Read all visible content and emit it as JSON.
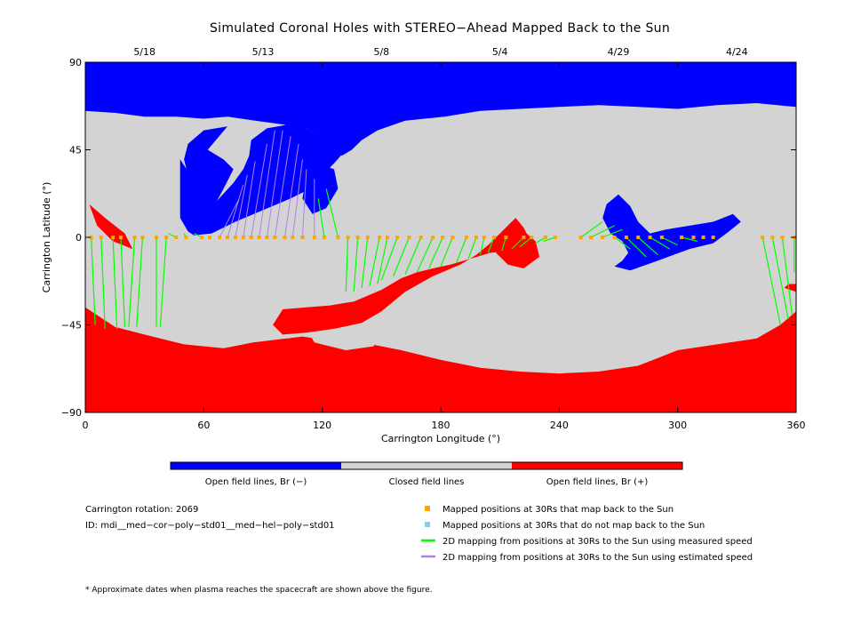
{
  "chart_data": {
    "type": "map",
    "title": "Simulated Coronal Holes with STEREO−Ahead Mapped Back to the Sun",
    "xlabel": "Carrington Longitude (°)",
    "ylabel": "Carrington Latitude (°)",
    "xlim": [
      0,
      360
    ],
    "ylim": [
      -90,
      90
    ],
    "x_ticks": [
      "0",
      "60",
      "120",
      "180",
      "240",
      "300",
      "360"
    ],
    "y_ticks": [
      "90",
      "45",
      "0",
      "−45",
      "−90"
    ],
    "top_dates": [
      {
        "label": "5/18",
        "lon": 30
      },
      {
        "label": "5/13",
        "lon": 90
      },
      {
        "label": "5/8",
        "lon": 150
      },
      {
        "label": "5/4",
        "lon": 210
      },
      {
        "label": "4/29",
        "lon": 270
      },
      {
        "label": "4/24",
        "lon": 330
      }
    ],
    "colors": {
      "open_negative": "#0000ff",
      "closed": "#d3d3d3",
      "open_positive": "#ff0000",
      "mapped_back": "#ffa500",
      "not_mapped": "#87ceeb",
      "measured_speed": "#00ff00",
      "estimated_speed": "#b17fe9"
    },
    "regions": {
      "negative_polar_cap": [
        [
          0,
          90
        ],
        [
          360,
          90
        ],
        [
          360,
          67
        ],
        [
          340,
          69
        ],
        [
          320,
          68
        ],
        [
          300,
          66
        ],
        [
          280,
          67
        ],
        [
          260,
          68
        ],
        [
          240,
          67
        ],
        [
          220,
          66
        ],
        [
          200,
          65
        ],
        [
          182,
          62
        ],
        [
          162,
          60
        ],
        [
          148,
          55
        ],
        [
          140,
          50
        ],
        [
          135,
          45
        ],
        [
          130,
          42
        ],
        [
          120,
          51
        ],
        [
          112,
          56
        ],
        [
          100,
          58
        ],
        [
          86,
          60
        ],
        [
          72,
          62
        ],
        [
          60,
          61
        ],
        [
          46,
          62
        ],
        [
          30,
          62
        ],
        [
          15,
          64
        ],
        [
          0,
          65
        ]
      ],
      "negative_descending_lobe": [
        [
          132,
          45
        ],
        [
          122,
          50
        ],
        [
          112,
          56
        ],
        [
          103,
          58
        ],
        [
          92,
          56
        ],
        [
          84,
          50
        ],
        [
          83,
          42
        ],
        [
          80,
          35
        ],
        [
          75,
          28
        ],
        [
          66,
          18
        ],
        [
          56,
          8
        ],
        [
          52,
          3
        ],
        [
          55,
          1
        ],
        [
          64,
          2
        ],
        [
          76,
          8
        ],
        [
          90,
          14
        ],
        [
          104,
          20
        ],
        [
          114,
          25
        ],
        [
          120,
          32
        ],
        [
          126,
          38
        ]
      ],
      "negative_left_cap": [
        [
          72,
          55
        ],
        [
          63,
          55
        ],
        [
          52,
          48
        ],
        [
          52,
          40
        ],
        [
          56,
          35
        ],
        [
          62,
          30
        ],
        [
          53,
          20
        ],
        [
          47,
          40
        ],
        [
          52,
          48
        ]
      ],
      "negative_hook": [
        [
          72,
          57
        ],
        [
          60,
          55
        ],
        [
          52,
          48
        ],
        [
          50,
          40
        ],
        [
          52,
          32
        ],
        [
          56,
          28
        ],
        [
          48,
          40
        ],
        [
          48,
          10
        ],
        [
          52,
          3
        ],
        [
          62,
          10
        ],
        [
          70,
          25
        ],
        [
          75,
          35
        ],
        [
          70,
          40
        ],
        [
          62,
          45
        ]
      ],
      "negative_small_right": [
        [
          118,
          38
        ],
        [
          112,
          32
        ],
        [
          110,
          20
        ],
        [
          115,
          12
        ],
        [
          122,
          15
        ],
        [
          128,
          25
        ],
        [
          126,
          35
        ]
      ],
      "negative_mid_right": [
        [
          270,
          22
        ],
        [
          264,
          17
        ],
        [
          262,
          10
        ],
        [
          266,
          2
        ],
        [
          272,
          -2
        ],
        [
          275,
          -8
        ],
        [
          272,
          -12
        ],
        [
          268,
          -15
        ],
        [
          276,
          -17
        ],
        [
          290,
          -12
        ],
        [
          306,
          -6
        ],
        [
          318,
          -3
        ],
        [
          326,
          3
        ],
        [
          332,
          8
        ],
        [
          328,
          12
        ],
        [
          318,
          8
        ],
        [
          306,
          6
        ],
        [
          294,
          4
        ],
        [
          286,
          2
        ],
        [
          280,
          8
        ],
        [
          276,
          16
        ]
      ],
      "positive_polar_cap": [
        [
          0,
          -90
        ],
        [
          360,
          -90
        ],
        [
          360,
          -38
        ],
        [
          352,
          -45
        ],
        [
          340,
          -52
        ],
        [
          320,
          -55
        ],
        [
          300,
          -58
        ],
        [
          280,
          -66
        ],
        [
          260,
          -69
        ],
        [
          240,
          -70
        ],
        [
          220,
          -69
        ],
        [
          200,
          -67
        ],
        [
          180,
          -63
        ],
        [
          160,
          -58
        ],
        [
          145,
          -55
        ],
        [
          130,
          -54
        ],
        [
          110,
          -51
        ],
        [
          85,
          -54
        ],
        [
          70,
          -57
        ],
        [
          50,
          -55
        ],
        [
          30,
          -50
        ],
        [
          15,
          -46
        ],
        [
          0,
          -36
        ]
      ],
      "positive_ridge": [
        [
          95,
          -45
        ],
        [
          100,
          -37
        ],
        [
          112,
          -36
        ],
        [
          124,
          -35
        ],
        [
          136,
          -33
        ],
        [
          150,
          -27
        ],
        [
          160,
          -21
        ],
        [
          168,
          -18
        ],
        [
          176,
          -16
        ],
        [
          185,
          -14
        ],
        [
          195,
          -11
        ],
        [
          205,
          -8
        ],
        [
          214,
          -7
        ],
        [
          220,
          -5
        ],
        [
          226,
          -3
        ],
        [
          222,
          5
        ],
        [
          218,
          10
        ],
        [
          212,
          4
        ],
        [
          204,
          -4
        ],
        [
          198,
          -9
        ],
        [
          190,
          -14
        ],
        [
          176,
          -20
        ],
        [
          162,
          -28
        ],
        [
          150,
          -38
        ],
        [
          140,
          -44
        ],
        [
          126,
          -47
        ],
        [
          112,
          -49
        ],
        [
          100,
          -50
        ]
      ],
      "positive_tip": [
        [
          220,
          5
        ],
        [
          214,
          -1
        ],
        [
          208,
          -8
        ],
        [
          214,
          -14
        ],
        [
          222,
          -16
        ],
        [
          230,
          -10
        ],
        [
          228,
          -2
        ]
      ],
      "positive_left_wedge": [
        [
          2,
          17
        ],
        [
          10,
          10
        ],
        [
          20,
          2
        ],
        [
          24,
          -6
        ],
        [
          14,
          -2
        ],
        [
          6,
          6
        ]
      ],
      "positive_right_spot": [
        [
          356,
          -24
        ],
        [
          354,
          -26
        ],
        [
          360,
          -28
        ],
        [
          360,
          -24
        ]
      ],
      "closed_island_big": [
        [
          116,
          -42
        ],
        [
          112,
          -47
        ],
        [
          116,
          -54
        ],
        [
          132,
          -58
        ],
        [
          146,
          -56
        ],
        [
          150,
          -50
        ],
        [
          146,
          -44
        ],
        [
          134,
          -40
        ],
        [
          124,
          -39
        ]
      ],
      "closed_island_small": [
        [
          96,
          -49
        ],
        [
          98,
          -51
        ],
        [
          103,
          -52
        ],
        [
          106,
          -51
        ],
        [
          104,
          -48
        ],
        [
          99,
          -47
        ]
      ],
      "positive_right_small": [
        [
          355,
          -26
        ],
        [
          360,
          -24
        ]
      ]
    },
    "mapped_points": {
      "lat_on_equator": 0,
      "lon": [
        3,
        8,
        14,
        18,
        25,
        29,
        36,
        41,
        46,
        51,
        59,
        63,
        68,
        72,
        76,
        80,
        84,
        88,
        92,
        96,
        101,
        105,
        110,
        116,
        121,
        128,
        133,
        138,
        143,
        149,
        153,
        158,
        164,
        170,
        176,
        181,
        186,
        193,
        198,
        202,
        207,
        213,
        222,
        226,
        233,
        238,
        251,
        256,
        262,
        268,
        274,
        280,
        286,
        292,
        302,
        308,
        313,
        318,
        343,
        348,
        353,
        359
      ]
    },
    "measured_lines": [
      [
        [
          3,
          0
        ],
        [
          5,
          -45
        ]
      ],
      [
        [
          8,
          0
        ],
        [
          10,
          -47
        ]
      ],
      [
        [
          14,
          0
        ],
        [
          16,
          -47
        ]
      ],
      [
        [
          18,
          0
        ],
        [
          20,
          -46
        ]
      ],
      [
        [
          25,
          0
        ],
        [
          22,
          -46
        ]
      ],
      [
        [
          29,
          0
        ],
        [
          26,
          -46
        ]
      ],
      [
        [
          36,
          0
        ],
        [
          36,
          -46
        ]
      ],
      [
        [
          41,
          0
        ],
        [
          38,
          -46
        ]
      ],
      [
        [
          46,
          0
        ],
        [
          42,
          2
        ]
      ],
      [
        [
          51,
          0
        ],
        [
          50,
          2
        ]
      ],
      [
        [
          59,
          0
        ],
        [
          55,
          2
        ]
      ],
      [
        [
          121,
          0
        ],
        [
          118,
          20
        ]
      ],
      [
        [
          128,
          0
        ],
        [
          122,
          25
        ]
      ],
      [
        [
          133,
          0
        ],
        [
          132,
          -28
        ]
      ],
      [
        [
          138,
          0
        ],
        [
          136,
          -28
        ]
      ],
      [
        [
          143,
          0
        ],
        [
          140,
          -26
        ]
      ],
      [
        [
          149,
          0
        ],
        [
          144,
          -25
        ]
      ],
      [
        [
          153,
          0
        ],
        [
          148,
          -24
        ]
      ],
      [
        [
          158,
          0
        ],
        [
          150,
          -22
        ]
      ],
      [
        [
          164,
          0
        ],
        [
          156,
          -20
        ]
      ],
      [
        [
          170,
          0
        ],
        [
          162,
          -19
        ]
      ],
      [
        [
          176,
          0
        ],
        [
          168,
          -18
        ]
      ],
      [
        [
          181,
          0
        ],
        [
          174,
          -16
        ]
      ],
      [
        [
          186,
          0
        ],
        [
          180,
          -15
        ]
      ],
      [
        [
          193,
          0
        ],
        [
          188,
          -13
        ]
      ],
      [
        [
          198,
          0
        ],
        [
          194,
          -11
        ]
      ],
      [
        [
          202,
          0
        ],
        [
          200,
          -9
        ]
      ],
      [
        [
          207,
          0
        ],
        [
          204,
          -8
        ]
      ],
      [
        [
          213,
          0
        ],
        [
          211,
          -7
        ]
      ],
      [
        [
          222,
          0
        ],
        [
          216,
          -6
        ]
      ],
      [
        [
          226,
          0
        ],
        [
          220,
          -5
        ]
      ],
      [
        [
          233,
          0
        ],
        [
          228,
          -3
        ]
      ],
      [
        [
          238,
          0
        ],
        [
          232,
          -2
        ]
      ],
      [
        [
          251,
          0
        ],
        [
          262,
          8
        ]
      ],
      [
        [
          256,
          0
        ],
        [
          268,
          6
        ]
      ],
      [
        [
          262,
          0
        ],
        [
          272,
          4
        ]
      ],
      [
        [
          268,
          0
        ],
        [
          276,
          -6
        ]
      ],
      [
        [
          274,
          0
        ],
        [
          284,
          -10
        ]
      ],
      [
        [
          280,
          0
        ],
        [
          290,
          -9
        ]
      ],
      [
        [
          286,
          0
        ],
        [
          296,
          -6
        ]
      ],
      [
        [
          292,
          0
        ],
        [
          300,
          -4
        ]
      ],
      [
        [
          302,
          0
        ],
        [
          310,
          -2
        ]
      ],
      [
        [
          343,
          0
        ],
        [
          352,
          -45
        ]
      ],
      [
        [
          348,
          0
        ],
        [
          356,
          -42
        ]
      ],
      [
        [
          353,
          0
        ],
        [
          358,
          -40
        ]
      ],
      [
        [
          359,
          0
        ],
        [
          359,
          -18
        ]
      ]
    ],
    "estimated_lines": [
      [
        [
          68,
          0
        ],
        [
          78,
          20
        ]
      ],
      [
        [
          72,
          0
        ],
        [
          80,
          27
        ]
      ],
      [
        [
          76,
          0
        ],
        [
          82,
          32
        ]
      ],
      [
        [
          80,
          0
        ],
        [
          86,
          39
        ]
      ],
      [
        [
          84,
          0
        ],
        [
          92,
          48
        ]
      ],
      [
        [
          88,
          0
        ],
        [
          96,
          55
        ]
      ],
      [
        [
          92,
          0
        ],
        [
          100,
          55
        ]
      ],
      [
        [
          96,
          0
        ],
        [
          104,
          52
        ]
      ],
      [
        [
          101,
          0
        ],
        [
          108,
          48
        ]
      ],
      [
        [
          105,
          0
        ],
        [
          110,
          40
        ]
      ],
      [
        [
          110,
          0
        ],
        [
          112,
          35
        ]
      ],
      [
        [
          116,
          0
        ],
        [
          116,
          30
        ]
      ]
    ]
  },
  "legend": {
    "colorbar": {
      "open_negative_label": "Open field lines, Br (−)",
      "closed_label": "Closed field lines",
      "open_positive_label": "Open field lines, Br (+)"
    },
    "carrington_rotation": "Carrington rotation: 2069",
    "model_id": "ID: mdi__med−cor−poly−std01__med−hel−poly−std01",
    "items": [
      "Mapped positions at 30Rs that map back to the Sun",
      "Mapped positions at 30Rs that do not map back to the Sun",
      "2D mapping from positions at 30Rs to the Sun using measured speed",
      "2D mapping from positions at 30Rs to the Sun using estimated speed"
    ],
    "footnote": "* Approximate dates when plasma reaches the spacecraft are shown above the figure."
  }
}
